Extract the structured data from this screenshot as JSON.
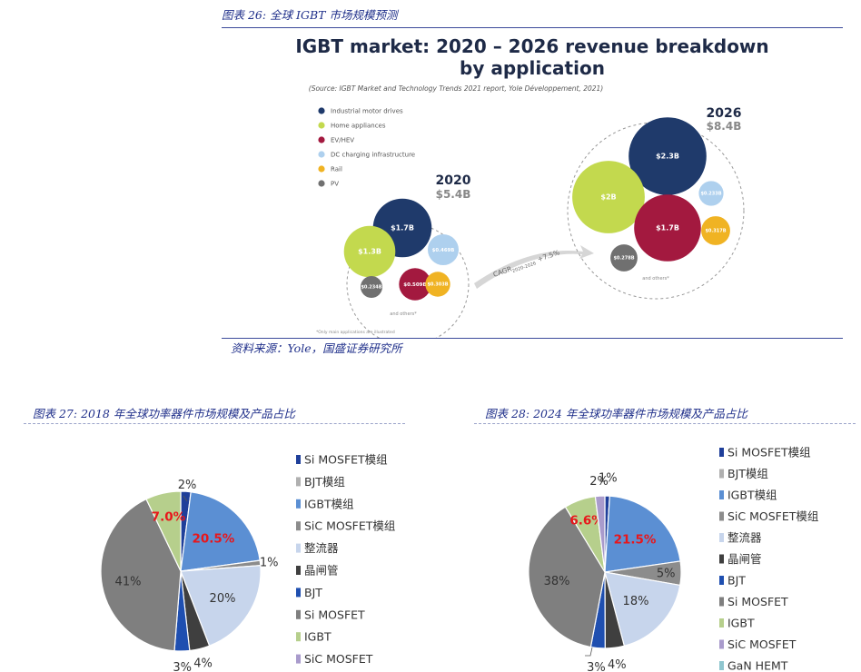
{
  "fig26": {
    "caption": "图表 26:  全球 IGBT 市场规模预测",
    "source_note": "资料来源：Yole，国盛证券研究所",
    "infographic": {
      "title_line1": "IGBT market: 2020 – 2026 revenue breakdown",
      "title_line2": "by application",
      "subtitle": "(Source: IGBT Market and Technology Trends 2021 report, Yole Développement, 2021)",
      "legend": [
        {
          "label": "Industrial motor drives",
          "color": "#1f3a6b"
        },
        {
          "label": "Home appliances",
          "color": "#c3d94e"
        },
        {
          "label": "EV/HEV",
          "color": "#a3193f"
        },
        {
          "label": "DC charging infrastructure",
          "color": "#aed0ee"
        },
        {
          "label": "Rail",
          "color": "#f0b323"
        },
        {
          "label": "PV",
          "color": "#707070"
        }
      ],
      "year_2020": "2020",
      "total_2020": "$5.4B",
      "year_2026": "2026",
      "total_2026": "$8.4B",
      "cagr_label": "CAGR",
      "cagr_sub": "2020-2026",
      "cagr_value": "+7.5%",
      "and_others": "and others*",
      "footnote": "*Only main applications are illustrated"
    }
  },
  "fig27": {
    "caption": "图表 27:  2018 年全球功率器件市场规模及产品占比"
  },
  "fig28": {
    "caption": "图表 28:  2024 年全球功率器件市场规模及产品占比"
  },
  "chart_data": [
    {
      "type": "bubble",
      "title": "IGBT market: 2020 – 2026 revenue breakdown by application",
      "unit": "$B",
      "series": [
        {
          "name": "2020",
          "total": 5.4,
          "labels": [
            "$1.7B",
            "$1.3B",
            "$0.509B",
            "$0.234B",
            "$0.303B",
            "$0.469B"
          ],
          "values": [
            1.7,
            1.3,
            0.509,
            0.234,
            0.303,
            0.469
          ],
          "categories": [
            "Industrial motor drives",
            "Home appliances",
            "EV/HEV",
            "PV",
            "Rail",
            "DC charging infrastructure"
          ]
        },
        {
          "name": "2026",
          "total": 8.4,
          "labels": [
            "$2.3B",
            "$2B",
            "$1.7B",
            "$0.278B",
            "$0.317B",
            "$0.233B"
          ],
          "values": [
            2.3,
            2.0,
            1.7,
            0.278,
            0.317,
            0.233
          ],
          "categories": [
            "Industrial motor drives",
            "Home appliances",
            "EV/HEV",
            "PV",
            "Rail",
            "DC charging infrastructure"
          ]
        }
      ]
    },
    {
      "type": "pie",
      "title": "",
      "start": "top",
      "direction": "clockwise",
      "slices": [
        {
          "label": "Si MOSFET模组",
          "value": 2,
          "text": "",
          "color": "#1f3f9a"
        },
        {
          "label": "IGBT模组",
          "value": 20.5,
          "text": "20.5%",
          "color": "#5b8fd3",
          "highlight": true
        },
        {
          "label": "SiC MOSFET模组",
          "value": 1,
          "text": "1%",
          "color": "#8c8c8c"
        },
        {
          "label": "整流器",
          "value": 20,
          "text": "20%",
          "color": "#c7d5ec"
        },
        {
          "label": "晶闸管",
          "value": 4,
          "text": "4%",
          "color": "#3f3f3f"
        },
        {
          "label": "BJT",
          "value": 3,
          "text": "3%",
          "color": "#1f4fb0"
        },
        {
          "label": "Si MOSFET",
          "value": 41,
          "text": "41%",
          "color": "#7f7f7f"
        },
        {
          "label": "IGBT",
          "value": 7,
          "text": "7.0%",
          "color": "#b6cf8c",
          "highlight": true
        }
      ],
      "extra_labels": [
        {
          "text": "2%",
          "note": "Si MOSFET模组"
        }
      ],
      "legend": [
        {
          "label": "Si MOSFET模组",
          "color": "#1f3f9a"
        },
        {
          "label": "BJT模组",
          "color": "#b0b0b0"
        },
        {
          "label": "IGBT模组",
          "color": "#5b8fd3"
        },
        {
          "label": "SiC MOSFET模组",
          "color": "#8c8c8c"
        },
        {
          "label": "整流器",
          "color": "#c7d5ec"
        },
        {
          "label": "晶闸管",
          "color": "#3f3f3f"
        },
        {
          "label": "BJT",
          "color": "#1f4fb0"
        },
        {
          "label": "Si MOSFET",
          "color": "#7f7f7f"
        },
        {
          "label": "IGBT",
          "color": "#b6cf8c"
        },
        {
          "label": "SiC MOSFET",
          "color": "#a99bcc"
        }
      ]
    },
    {
      "type": "pie",
      "title": "",
      "start": "top",
      "direction": "clockwise",
      "slices": [
        {
          "label": "Si MOSFET模组",
          "value": 1,
          "text": "1%",
          "color": "#1f3f9a"
        },
        {
          "label": "IGBT模组",
          "value": 21.5,
          "text": "21.5%",
          "color": "#5b8fd3",
          "highlight": true
        },
        {
          "label": "SiC MOSFET模组",
          "value": 5,
          "text": "5%",
          "color": "#8c8c8c"
        },
        {
          "label": "整流器",
          "value": 18,
          "text": "18%",
          "color": "#c7d5ec"
        },
        {
          "label": "晶闸管",
          "value": 4,
          "text": "4%",
          "color": "#3f3f3f"
        },
        {
          "label": "BJT",
          "value": 3,
          "text": "3%",
          "color": "#1f4fb0"
        },
        {
          "label": "Si MOSFET",
          "value": 38,
          "text": "38%",
          "color": "#7f7f7f"
        },
        {
          "label": "IGBT",
          "value": 6.6,
          "text": "6.6%",
          "color": "#b6cf8c",
          "highlight": true
        },
        {
          "label": "SiC MOSFET",
          "value": 2,
          "text": "2%",
          "color": "#a99bcc"
        }
      ],
      "legend": [
        {
          "label": "Si MOSFET模组",
          "color": "#1f3f9a"
        },
        {
          "label": "BJT模组",
          "color": "#b0b0b0"
        },
        {
          "label": "IGBT模组",
          "color": "#5b8fd3"
        },
        {
          "label": "SiC MOSFET模组",
          "color": "#8c8c8c"
        },
        {
          "label": "整流器",
          "color": "#c7d5ec"
        },
        {
          "label": "晶闸管",
          "color": "#3f3f3f"
        },
        {
          "label": "BJT",
          "color": "#1f4fb0"
        },
        {
          "label": "Si MOSFET",
          "color": "#7f7f7f"
        },
        {
          "label": "IGBT",
          "color": "#b6cf8c"
        },
        {
          "label": "SiC MOSFET",
          "color": "#a99bcc"
        },
        {
          "label": "GaN HEMT",
          "color": "#8fc6cf"
        }
      ]
    }
  ]
}
